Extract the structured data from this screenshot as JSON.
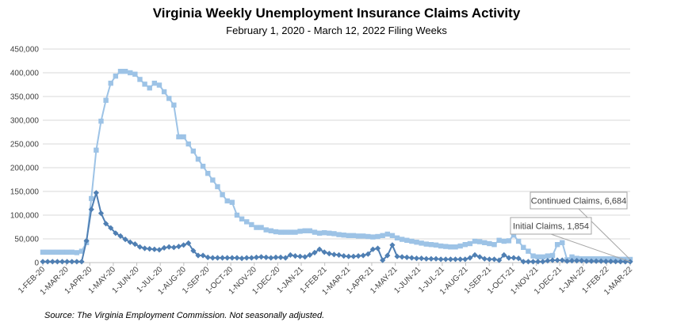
{
  "chart_data": {
    "type": "line",
    "title": "Virginia Weekly Unemployment Insurance Claims Activity",
    "subtitle": "February 1, 2020 - March 12, 2022 Filing Weeks",
    "source": "Source: The Virginia Employment Commission. Not seasonally adjusted.",
    "xlabel": "",
    "ylabel": "",
    "ylim": [
      0,
      450000
    ],
    "y_ticks": [
      "0",
      "50,000",
      "100,000",
      "150,000",
      "200,000",
      "250,000",
      "300,000",
      "350,000",
      "400,000",
      "450,000"
    ],
    "x_ticks": [
      "1-FEB-20",
      "1-MAR-20",
      "1-APR-20",
      "1-MAY-20",
      "1-JUN-20",
      "1-JUL-20",
      "1-AUG-20",
      "1-SEP-20",
      "1-OCT-20",
      "1-NOV-20",
      "1-DEC-20",
      "1-JAN-21",
      "1-FEB-21",
      "1-MAR-21",
      "1-APR-21",
      "1-MAY-21",
      "1-JUN-21",
      "1-JUL-21",
      "1-AUG-21",
      "1-SEP-21",
      "1-OCT-21",
      "1-NOV-21",
      "1-DEC-21",
      "1-JAN-22",
      "1-FEB-22",
      "1-MAR-22"
    ],
    "grid": "horizontal",
    "series": [
      {
        "name": "Continued Claims",
        "color": "#9dc3e6",
        "marker": "square",
        "callout": "Continued Claims, 6,684",
        "values": [
          22000,
          22000,
          22000,
          22000,
          22000,
          22000,
          22000,
          21000,
          24000,
          42000,
          135000,
          237000,
          298000,
          342000,
          378000,
          393000,
          403000,
          403000,
          400000,
          397000,
          386000,
          376000,
          368000,
          378000,
          374000,
          360000,
          346000,
          332000,
          265000,
          265000,
          250000,
          235000,
          218000,
          203000,
          188000,
          174000,
          160000,
          143000,
          130000,
          127000,
          100000,
          92000,
          86000,
          80000,
          74000,
          74000,
          69000,
          67000,
          65000,
          64000,
          64000,
          64000,
          64000,
          66000,
          67000,
          67000,
          64000,
          62000,
          63000,
          62000,
          61000,
          59000,
          58000,
          57000,
          57000,
          56000,
          56000,
          55000,
          54000,
          55000,
          57000,
          60000,
          57000,
          52000,
          49000,
          47000,
          45000,
          43000,
          41000,
          39000,
          38000,
          37000,
          35000,
          34000,
          33000,
          33000,
          35000,
          38000,
          40000,
          45000,
          44000,
          42000,
          40000,
          38000,
          47000,
          45000,
          46000,
          58000,
          45000,
          32000,
          24000,
          14000,
          12000,
          12000,
          14000,
          15000,
          38000,
          42000,
          6000,
          12000,
          9000,
          8000,
          8000,
          8000,
          8000,
          8000,
          8000,
          8000,
          7500,
          7000,
          7000,
          6684
        ]
      },
      {
        "name": "Initial Claims",
        "color": "#4f7fb3",
        "marker": "diamond",
        "callout": "Initial Claims, 1,854",
        "values": [
          2000,
          2000,
          2000,
          2000,
          2000,
          2000,
          2000,
          2000,
          2000,
          46000,
          112000,
          147000,
          104000,
          82000,
          73000,
          62000,
          56000,
          49000,
          43000,
          39000,
          33000,
          30000,
          29000,
          28000,
          27000,
          31000,
          33000,
          32000,
          34000,
          37000,
          41000,
          25000,
          15000,
          15000,
          11000,
          10000,
          10000,
          10000,
          10000,
          10000,
          10000,
          9000,
          10000,
          10000,
          11000,
          12000,
          11000,
          10000,
          11000,
          11000,
          10000,
          16000,
          14000,
          13000,
          12000,
          16000,
          21000,
          28000,
          22000,
          19000,
          17000,
          16000,
          14000,
          13000,
          13000,
          14000,
          15000,
          18000,
          28000,
          30000,
          5000,
          15000,
          37000,
          13000,
          12000,
          11000,
          10000,
          9000,
          9000,
          8000,
          8000,
          8000,
          7000,
          7000,
          7000,
          7000,
          7000,
          7000,
          10000,
          16000,
          12000,
          8000,
          7000,
          7000,
          5000,
          16000,
          10000,
          10000,
          9000,
          2000,
          2000,
          2000,
          2000,
          2000,
          4000,
          5000,
          5000,
          5000,
          3000,
          4000,
          4000,
          4000,
          3000,
          3000,
          3000,
          3000,
          2500,
          2500,
          2200,
          2000,
          1900,
          1854
        ]
      }
    ]
  }
}
